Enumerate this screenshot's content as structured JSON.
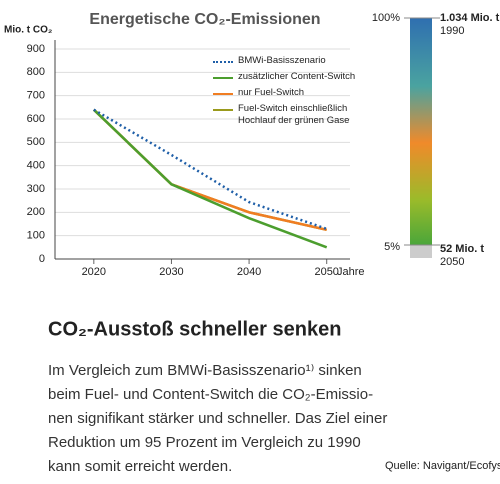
{
  "chart_data": {
    "type": "line",
    "title": "Energetische CO₂-Emissionen",
    "y_label": "Mio. t CO₂",
    "x_label": "Jahre",
    "x": [
      2020,
      2030,
      2040,
      2050
    ],
    "xlim": [
      2015,
      2053
    ],
    "xticks": [
      2020,
      2030,
      2040,
      2050
    ],
    "ylim": [
      0,
      900
    ],
    "yticks": [
      0,
      100,
      200,
      300,
      400,
      500,
      600,
      700,
      800,
      900
    ],
    "grid": true,
    "series": [
      {
        "name": "BMWi-Basisszenario",
        "color": "#1f5fa8",
        "style": "dotted",
        "values": [
          640,
          446,
          244,
          129
        ]
      },
      {
        "name": "zusätzlicher Content-Switch",
        "color": "#4c9e2e",
        "style": "solid",
        "values": [
          640,
          320,
          175,
          50
        ]
      },
      {
        "name": "nur Fuel-Switch",
        "color": "#f07d22",
        "style": "solid",
        "values": [
          640,
          320,
          200,
          125
        ]
      },
      {
        "name": "Fuel-Switch einschließlich\nHochlauf der grünen Gase",
        "color": "#9a9a1c",
        "style": "solid",
        "values": [
          640,
          320,
          200,
          125
        ]
      }
    ]
  },
  "scale_bar": {
    "top_percent": "100%",
    "top_amount": "1.034 Mio. t",
    "top_year": "1990",
    "bottom_percent": "5%",
    "bottom_amount": "52 Mio. t",
    "bottom_year": "2050"
  },
  "text": {
    "heading": "CO₂-Ausstoß schneller senken",
    "lines": [
      "Im Vergleich zum BMWi-Basisszenario¹⁾ sinken",
      "beim Fuel- und Content-Switch die CO₂-Emissio-",
      "nen signifikant stärker und schneller. Das Ziel einer",
      "Reduktion um 95 Prozent im Vergleich zu 1990",
      "kann somit erreicht werden."
    ],
    "source": "Quelle: Navigant/Ecofys"
  }
}
